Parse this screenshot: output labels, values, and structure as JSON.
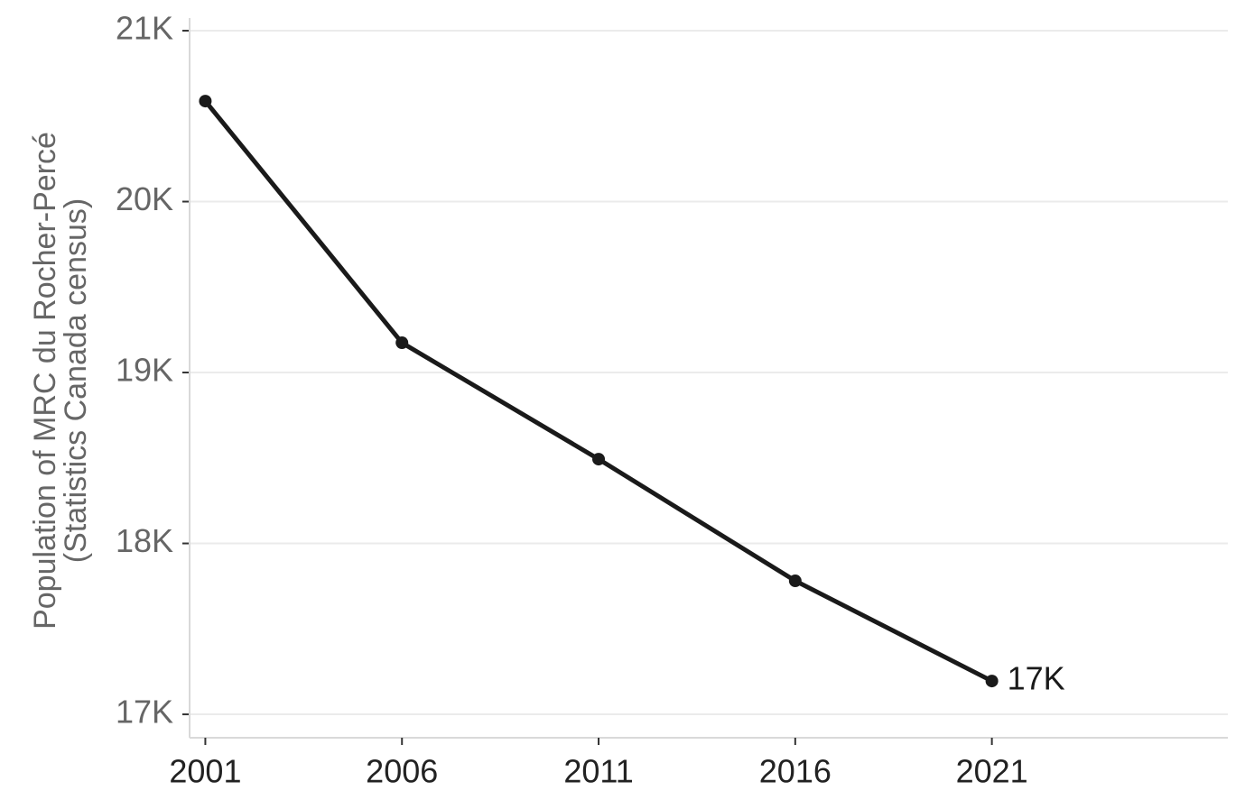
{
  "chart_data": {
    "type": "line",
    "y_label": [
      "Population of MRC du Rocher-Percé",
      "(Statistics Canada census)"
    ],
    "x": [
      2001,
      2006,
      2011,
      2016,
      2021
    ],
    "values": [
      20588,
      19174,
      18493,
      17781,
      17195
    ],
    "value_labels": [
      null,
      null,
      null,
      null,
      "17K"
    ],
    "color": "#1a1a1a",
    "xlim": [
      2000.6,
      2027
    ],
    "xticks": [
      2001,
      2006,
      2011,
      2016,
      2021
    ],
    "ylim": [
      16863,
      21074
    ],
    "yticks": [
      {
        "value": 17000,
        "label": "17K"
      },
      {
        "value": 18000,
        "label": "18K"
      },
      {
        "value": 19000,
        "label": "19K"
      },
      {
        "value": 20000,
        "label": "20K"
      },
      {
        "value": 21000,
        "label": "21K"
      }
    ],
    "grid": true
  }
}
